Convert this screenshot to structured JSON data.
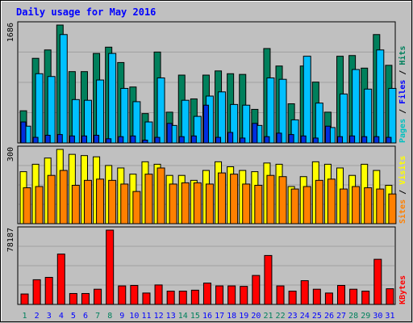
{
  "chart_data": {
    "type": "bar",
    "title": "Daily usage for May 2016",
    "categories": [
      "1",
      "2",
      "3",
      "4",
      "5",
      "6",
      "7",
      "8",
      "9",
      "10",
      "11",
      "12",
      "13",
      "14",
      "15",
      "16",
      "17",
      "18",
      "19",
      "20",
      "21",
      "22",
      "23",
      "24",
      "25",
      "26",
      "27",
      "28",
      "29",
      "30",
      "31"
    ],
    "weekend_days": [
      "1",
      "7",
      "8",
      "14",
      "15",
      "21",
      "22",
      "28",
      "29"
    ],
    "colors": {
      "title": "#0000ff",
      "background": "#c0c0c0",
      "hits": "#00805c",
      "files": "#00c0ff",
      "pages": "#0030e0",
      "visits": "#ffff00",
      "sites": "#ff8000",
      "kbytes": "#ff0000",
      "weekend_label": "#00805c",
      "weekday_label": "#0000ff"
    },
    "panels": [
      {
        "id": "hits-files-pages",
        "max_label": "1686",
        "ylim": [
          0,
          1686
        ],
        "legend": [
          {
            "text": "Pages",
            "color": "#00c0c0"
          },
          {
            "text": " / ",
            "color": "#000000"
          },
          {
            "text": "Files",
            "color": "#0000ff"
          },
          {
            "text": " / ",
            "color": "#000000"
          },
          {
            "text": "Hits",
            "color": "#00805c"
          }
        ],
        "series": [
          {
            "name": "Hits",
            "color": "#00805c",
            "values": [
              460,
              1210,
              1330,
              1686,
              1020,
              1020,
              1280,
              1370,
              1150,
              800,
              420,
              1300,
              440,
              970,
              630,
              970,
              1030,
              990,
              980,
              480,
              1350,
              1100,
              560,
              1100,
              870,
              440,
              1240,
              1250,
              1070,
              1550,
              1110
            ]
          },
          {
            "name": "Files",
            "color": "#00c0ff",
            "values": [
              240,
              990,
              950,
              1550,
              620,
              610,
              900,
              1280,
              780,
              590,
              300,
              930,
              250,
              610,
              380,
              670,
              730,
              550,
              540,
              250,
              930,
              910,
              330,
              1240,
              570,
              220,
              700,
              1050,
              770,
              1330,
              780
            ]
          },
          {
            "name": "Pages",
            "color": "#0030e0",
            "values": [
              300,
              80,
              110,
              120,
              100,
              100,
              110,
              60,
              90,
              100,
              40,
              80,
              280,
              90,
              100,
              540,
              80,
              150,
              70,
              280,
              90,
              140,
              120,
              100,
              70,
              240,
              90,
              100,
              90,
              90,
              80
            ]
          }
        ]
      },
      {
        "id": "visits-sites",
        "max_label": "300",
        "ylim": [
          0,
          300
        ],
        "legend": [
          {
            "text": "Sites",
            "color": "#ff8000"
          },
          {
            "text": " / ",
            "color": "#000000"
          },
          {
            "text": "Visits",
            "color": "#ffff00"
          }
        ],
        "series": [
          {
            "name": "Visits",
            "color": "#ffff00",
            "values": [
              210,
              240,
              265,
              300,
              280,
              275,
              270,
              235,
              225,
              200,
              250,
              240,
              195,
              195,
              175,
              215,
              250,
              230,
              215,
              210,
              245,
              240,
              150,
              190,
              250,
              240,
              225,
              195,
              240,
              215,
              155
            ]
          },
          {
            "name": "Sites",
            "color": "#ff8000",
            "values": [
              145,
              150,
              195,
              215,
              155,
              175,
              180,
              175,
              160,
              130,
              200,
              225,
              160,
              165,
              165,
              160,
              205,
              200,
              160,
              155,
              195,
              190,
              140,
              150,
              175,
              180,
              140,
              150,
              145,
              140,
              120
            ]
          }
        ]
      },
      {
        "id": "kbytes",
        "max_label": "78187",
        "ylim": [
          0,
          78187
        ],
        "legend": [
          {
            "text": "KBytes",
            "color": "#ff0000"
          }
        ],
        "series": [
          {
            "name": "KBytes",
            "color": "#ff0000",
            "values": [
              11000,
              26000,
              28500,
              53000,
              11500,
              11500,
              16000,
              78187,
              19500,
              20000,
              12000,
              20500,
              14000,
              14000,
              15000,
              22500,
              19500,
              19500,
              19000,
              30500,
              51500,
              19500,
              14000,
              25000,
              16000,
              12000,
              20000,
              16000,
              14000,
              47500,
              16500
            ]
          }
        ]
      }
    ]
  }
}
